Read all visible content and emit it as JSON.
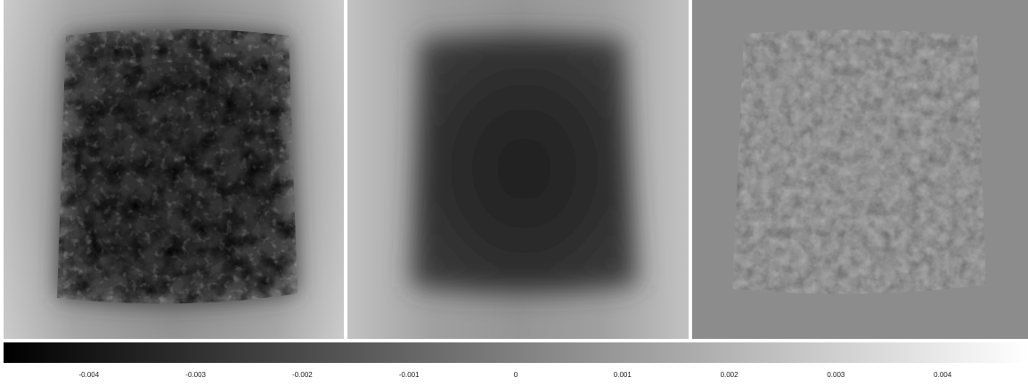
{
  "panels": [
    {
      "name": "panel-left",
      "description": "noisy grayscale map with rectangular dark region"
    },
    {
      "name": "panel-middle",
      "description": "smooth grayscale map with blurred dark rectangle"
    },
    {
      "name": "panel-right",
      "description": "residual grayscale map with fine texture"
    }
  ],
  "colorbar": {
    "min": -0.0048,
    "max": 0.0048,
    "gradient_start": "#000000",
    "gradient_end": "#ffffff",
    "ticks": [
      {
        "value": -0.004,
        "label": "-0.004"
      },
      {
        "value": -0.003,
        "label": "-0.003"
      },
      {
        "value": -0.002,
        "label": "-0.002"
      },
      {
        "value": -0.001,
        "label": "-0.001"
      },
      {
        "value": 0,
        "label": "0"
      },
      {
        "value": 0.001,
        "label": "0.001"
      },
      {
        "value": 0.002,
        "label": "0.002"
      },
      {
        "value": 0.003,
        "label": "0.003"
      },
      {
        "value": 0.004,
        "label": "0.004"
      }
    ]
  }
}
